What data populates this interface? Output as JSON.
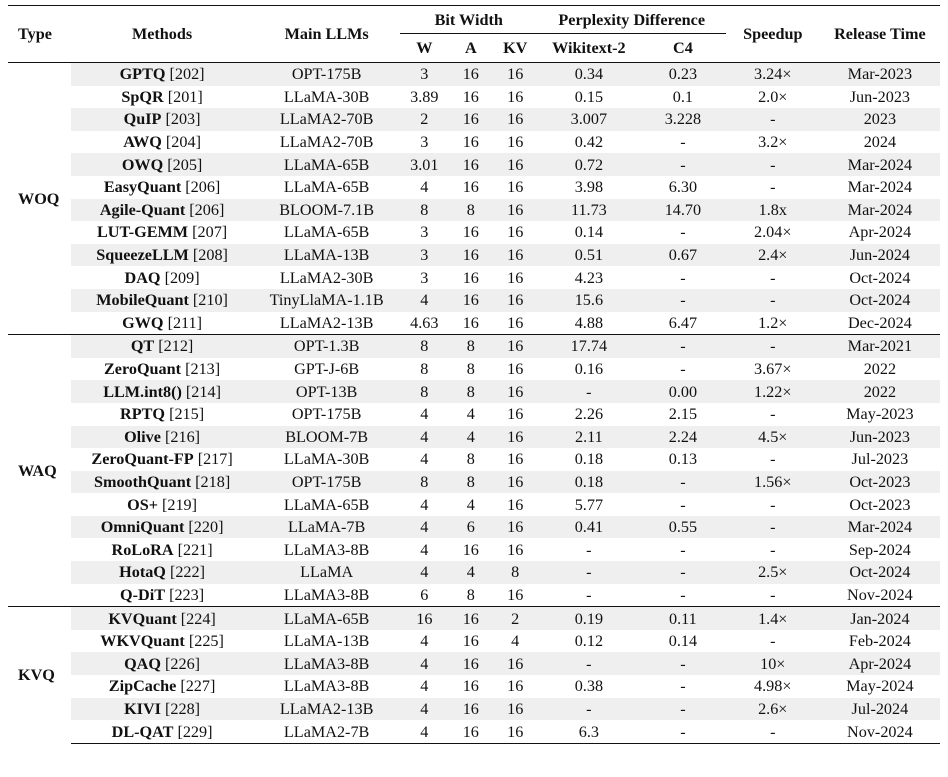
{
  "caption": "",
  "headers": {
    "type": "Type",
    "methods": "Methods",
    "llms": "Main LLMs",
    "bit_width": "Bit Width",
    "w": "W",
    "a": "A",
    "kv": "KV",
    "perplexity": "Perplexity Difference",
    "wikitext": "Wikitext-2",
    "c4": "C4",
    "speedup": "Speedup",
    "release": "Release Time"
  },
  "groups": [
    {
      "type": "WOQ",
      "rows": [
        {
          "name": "GPTQ",
          "ref": " [202]",
          "llm": "OPT-175B",
          "w": "3",
          "a": "16",
          "kv": "16",
          "wiki": "0.34",
          "c4": "0.23",
          "speedup": "3.24×",
          "release": "Mar-2023"
        },
        {
          "name": "SpQR",
          "ref": " [201]",
          "llm": "LLaMA-30B",
          "w": "3.89",
          "a": "16",
          "kv": "16",
          "wiki": "0.15",
          "c4": "0.1",
          "speedup": "2.0×",
          "release": "Jun-2023"
        },
        {
          "name": "QuIP",
          "ref": " [203]",
          "llm": "LLaMA2-70B",
          "w": "2",
          "a": "16",
          "kv": "16",
          "wiki": "3.007",
          "c4": "3.228",
          "speedup": "-",
          "release": "2023"
        },
        {
          "name": "AWQ",
          "ref": " [204]",
          "llm": "LLaMA2-70B",
          "w": "3",
          "a": "16",
          "kv": "16",
          "wiki": "0.42",
          "c4": "-",
          "speedup": "3.2×",
          "release": "2024"
        },
        {
          "name": "OWQ",
          "ref": " [205]",
          "llm": "LLaMA-65B",
          "w": "3.01",
          "a": "16",
          "kv": "16",
          "wiki": "0.72",
          "c4": "-",
          "speedup": "-",
          "release": "Mar-2024"
        },
        {
          "name": "EasyQuant",
          "ref": " [206]",
          "llm": "LLaMA-65B",
          "w": "4",
          "a": "16",
          "kv": "16",
          "wiki": "3.98",
          "c4": "6.30",
          "speedup": "-",
          "release": "Mar-2024"
        },
        {
          "name": "Agile-Quant",
          "ref": " [206]",
          "llm": "BLOOM-7.1B",
          "w": "8",
          "a": "8",
          "kv": "16",
          "wiki": "11.73",
          "c4": "14.70",
          "speedup": "1.8x",
          "release": "Mar-2024"
        },
        {
          "name": "LUT-GEMM",
          "ref": " [207]",
          "llm": "LLaMA-65B",
          "w": "3",
          "a": "16",
          "kv": "16",
          "wiki": "0.14",
          "c4": "-",
          "speedup": "2.04×",
          "release": "Apr-2024"
        },
        {
          "name": "SqueezeLLM",
          "ref": " [208]",
          "llm": "LLaMA-13B",
          "w": "3",
          "a": "16",
          "kv": "16",
          "wiki": "0.51",
          "c4": "0.67",
          "speedup": "2.4×",
          "release": "Jun-2024"
        },
        {
          "name": "DAQ",
          "ref": " [209]",
          "llm": "LLaMA2-30B",
          "w": "3",
          "a": "16",
          "kv": "16",
          "wiki": "4.23",
          "c4": "-",
          "speedup": "-",
          "release": "Oct-2024"
        },
        {
          "name": "MobileQuant",
          "ref": " [210]",
          "llm": "TinyLlaMA-1.1B",
          "w": "4",
          "a": "16",
          "kv": "16",
          "wiki": "15.6",
          "c4": "-",
          "speedup": "-",
          "release": "Oct-2024"
        },
        {
          "name": "GWQ",
          "ref": " [211]",
          "llm": "LLaMA2-13B",
          "w": "4.63",
          "a": "16",
          "kv": "16",
          "wiki": "4.88",
          "c4": "6.47",
          "speedup": "1.2×",
          "release": "Dec-2024"
        }
      ]
    },
    {
      "type": "WAQ",
      "rows": [
        {
          "name": "QT",
          "ref": " [212]",
          "llm": "OPT-1.3B",
          "w": "8",
          "a": "8",
          "kv": "16",
          "wiki": "17.74",
          "c4": "-",
          "speedup": "-",
          "release": "Mar-2021"
        },
        {
          "name": "ZeroQuant",
          "ref": " [213]",
          "llm": "GPT-J-6B",
          "w": "8",
          "a": "8",
          "kv": "16",
          "wiki": "0.16",
          "c4": "-",
          "speedup": "3.67×",
          "release": "2022"
        },
        {
          "name": "LLM.int8()",
          "ref": " [214]",
          "llm": "OPT-13B",
          "w": "8",
          "a": "8",
          "kv": "16",
          "wiki": "-",
          "c4": "0.00",
          "speedup": "1.22×",
          "release": "2022"
        },
        {
          "name": "RPTQ",
          "ref": " [215]",
          "llm": "OPT-175B",
          "w": "4",
          "a": "4",
          "kv": "16",
          "wiki": "2.26",
          "c4": "2.15",
          "speedup": "-",
          "release": "May-2023"
        },
        {
          "name": "Olive",
          "ref": " [216]",
          "llm": "BLOOM-7B",
          "w": "4",
          "a": "4",
          "kv": "16",
          "wiki": "2.11",
          "c4": "2.24",
          "speedup": "4.5×",
          "release": "Jun-2023"
        },
        {
          "name": "ZeroQuant-FP",
          "ref": " [217]",
          "llm": "LLaMA-30B",
          "w": "4",
          "a": "8",
          "kv": "16",
          "wiki": "0.18",
          "c4": "0.13",
          "speedup": "-",
          "release": "Jul-2023"
        },
        {
          "name": "SmoothQuant",
          "ref": " [218]",
          "llm": "OPT-175B",
          "w": "8",
          "a": "8",
          "kv": "16",
          "wiki": "0.18",
          "c4": "-",
          "speedup": "1.56×",
          "release": "Oct-2023"
        },
        {
          "name": "OS+",
          "ref": " [219]",
          "llm": "LLaMA-65B",
          "w": "4",
          "a": "4",
          "kv": "16",
          "wiki": "5.77",
          "c4": "-",
          "speedup": "-",
          "release": "Oct-2023"
        },
        {
          "name": "OmniQuant",
          "ref": " [220]",
          "llm": "LLaMA-7B",
          "w": "4",
          "a": "6",
          "kv": "16",
          "wiki": "0.41",
          "c4": "0.55",
          "speedup": "-",
          "release": "Mar-2024"
        },
        {
          "name": "RoLoRA",
          "ref": " [221]",
          "llm": "LLaMA3-8B",
          "w": "4",
          "a": "16",
          "kv": "16",
          "wiki": "-",
          "c4": "-",
          "speedup": "-",
          "release": "Sep-2024"
        },
        {
          "name": "HotaQ",
          "ref": " [222]",
          "llm": "LLaMA",
          "w": "4",
          "a": "4",
          "kv": "8",
          "wiki": "-",
          "c4": "-",
          "speedup": "2.5×",
          "release": "Oct-2024"
        },
        {
          "name": "Q-DiT",
          "ref": " [223]",
          "llm": "LLaMA3-8B",
          "w": "6",
          "a": "8",
          "kv": "16",
          "wiki": "-",
          "c4": "-",
          "speedup": "-",
          "release": "Nov-2024"
        }
      ]
    },
    {
      "type": "KVQ",
      "rows": [
        {
          "name": "KVQuant",
          "ref": " [224]",
          "llm": "LLaMA-65B",
          "w": "16",
          "a": "16",
          "kv": "2",
          "wiki": "0.19",
          "c4": "0.11",
          "speedup": "1.4×",
          "release": "Jan-2024"
        },
        {
          "name": "WKVQuant",
          "ref": " [225]",
          "llm": "LLaMA-13B",
          "w": "4",
          "a": "16",
          "kv": "4",
          "wiki": "0.12",
          "c4": "0.14",
          "speedup": "-",
          "release": "Feb-2024"
        },
        {
          "name": "QAQ",
          "ref": " [226]",
          "llm": "LLaMA3-8B",
          "w": "4",
          "a": "16",
          "kv": "16",
          "wiki": "-",
          "c4": "-",
          "speedup": "10×",
          "release": "Apr-2024"
        },
        {
          "name": "ZipCache",
          "ref": " [227]",
          "llm": "LLaMA3-8B",
          "w": "4",
          "a": "16",
          "kv": "16",
          "wiki": "0.38",
          "c4": "-",
          "speedup": "4.98×",
          "release": "May-2024"
        },
        {
          "name": "KIVI",
          "ref": " [228]",
          "llm": "LLaMA2-13B",
          "w": "4",
          "a": "16",
          "kv": "16",
          "wiki": "-",
          "c4": "-",
          "speedup": "2.6×",
          "release": "Jul-2024"
        },
        {
          "name": "DL-QAT",
          "ref": " [229]",
          "llm": "LLaMA2-7B",
          "w": "4",
          "a": "16",
          "kv": "16",
          "wiki": "6.3",
          "c4": "-",
          "speedup": "-",
          "release": "Nov-2024"
        }
      ]
    }
  ]
}
